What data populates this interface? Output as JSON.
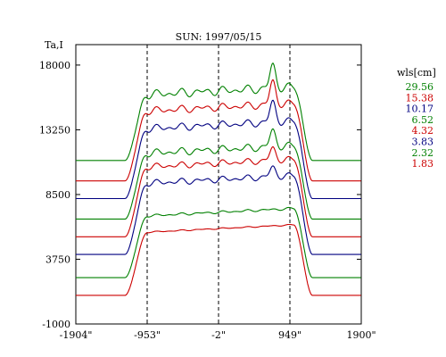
{
  "chart_data": {
    "type": "line",
    "title": "SUN: 1997/05/15",
    "ylabel": "Ta,I",
    "xlabel": "",
    "xlim": [
      -1904,
      1900
    ],
    "ylim": [
      -1000,
      19500
    ],
    "x_ticks": [
      -1904,
      -953,
      -2,
      949,
      1900
    ],
    "x_tick_labels": [
      "-1904\"",
      "-953\"",
      "-2\"",
      "949\"",
      "1900\""
    ],
    "y_ticks": [
      -1000,
      3750,
      8500,
      13250,
      18000
    ],
    "y_tick_labels": [
      "-1000",
      "3750",
      "8500",
      "13250",
      "18000"
    ],
    "vertical_markers": [
      -953,
      -2,
      949
    ],
    "legend_title": "wls[cm]",
    "legend_position": "right",
    "grid": false,
    "series": [
      {
        "name": "29.56",
        "color": "#008000",
        "base": 11000,
        "plateau": 16100,
        "limbspike": 1700,
        "wave": 350
      },
      {
        "name": "15.38",
        "color": "#cc0000",
        "base": 9500,
        "plateau": 14900,
        "limbspike": 1700,
        "wave": 300
      },
      {
        "name": "10.17",
        "color": "#000080",
        "base": 8200,
        "plateau": 13600,
        "limbspike": 1500,
        "wave": 300
      },
      {
        "name": "6.52",
        "color": "#008000",
        "base": 6700,
        "plateau": 11800,
        "limbspike": 1200,
        "wave": 300
      },
      {
        "name": "4.32",
        "color": "#cc0000",
        "base": 5400,
        "plateau": 10800,
        "limbspike": 900,
        "wave": 250
      },
      {
        "name": "3.83",
        "color": "#000080",
        "base": 4100,
        "plateau": 9600,
        "limbspike": 700,
        "wave": 250
      },
      {
        "name": "2.32",
        "color": "#008000",
        "base": 2400,
        "plateau": 7200,
        "limbspike": 0,
        "wave": 100
      },
      {
        "name": "1.83",
        "color": "#cc0000",
        "base": 1100,
        "plateau": 6000,
        "limbspike": 0,
        "wave": 50
      }
    ]
  }
}
